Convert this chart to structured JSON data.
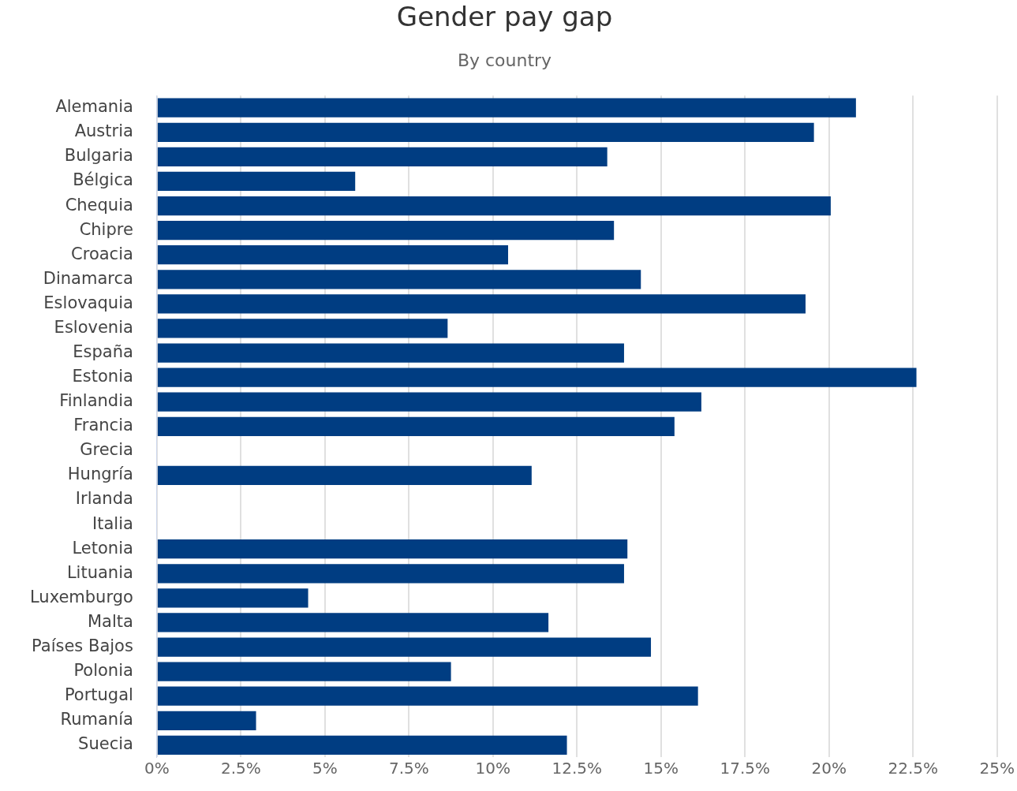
{
  "chart_data": {
    "type": "bar",
    "orientation": "horizontal",
    "title": "Gender pay gap",
    "subtitle": "By country",
    "categories": [
      "Alemania",
      "Austria",
      "Bulgaria",
      "Bélgica",
      "Chequia",
      "Chipre",
      "Croacia",
      "Dinamarca",
      "Eslovaquia",
      "Eslovenia",
      "España",
      "Estonia",
      "Finlandia",
      "Francia",
      "Grecia",
      "Hungría",
      "Irlanda",
      "Italia",
      "Letonia",
      "Lituania",
      "Luxemburgo",
      "Malta",
      "Países Bajos",
      "Polonia",
      "Portugal",
      "Rumanía",
      "Suecia"
    ],
    "values": [
      20.8,
      19.55,
      13.4,
      5.9,
      20.05,
      13.6,
      10.45,
      14.4,
      19.3,
      8.65,
      13.9,
      22.6,
      16.2,
      15.4,
      null,
      11.15,
      null,
      null,
      14.0,
      13.9,
      4.5,
      11.65,
      14.7,
      8.75,
      16.1,
      2.95,
      12.2
    ],
    "color": "#003d82",
    "xlim": [
      0,
      25
    ],
    "xticks": [
      {
        "value": 0,
        "label": "0%"
      },
      {
        "value": 2.5,
        "label": "2.5%"
      },
      {
        "value": 5,
        "label": "5%"
      },
      {
        "value": 7.5,
        "label": "7.5%"
      },
      {
        "value": 10,
        "label": "10%"
      },
      {
        "value": 12.5,
        "label": "12.5%"
      },
      {
        "value": 15,
        "label": "15%"
      },
      {
        "value": 17.5,
        "label": "17.5%"
      },
      {
        "value": 20,
        "label": "20%"
      },
      {
        "value": 22.5,
        "label": "22.5%"
      },
      {
        "value": 25,
        "label": "25%"
      }
    ],
    "grid": "x",
    "legend": false
  }
}
